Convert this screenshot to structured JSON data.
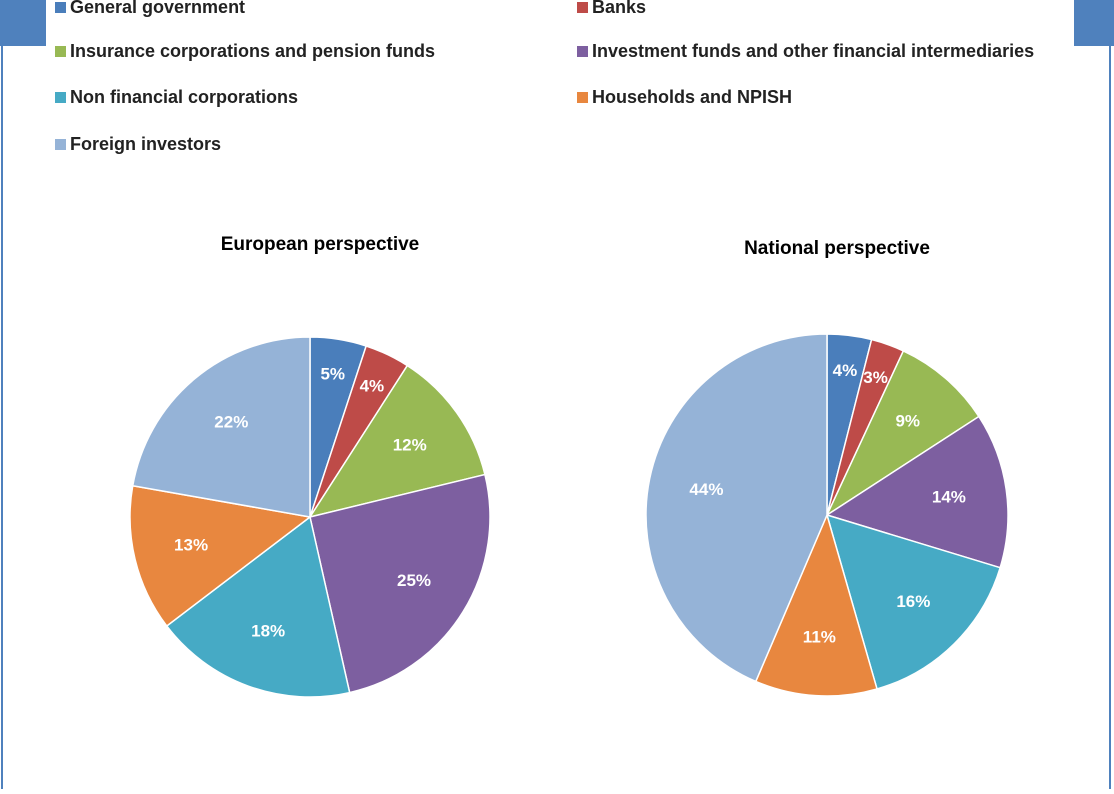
{
  "chart_data": [
    {
      "type": "pie",
      "title": "European perspective",
      "categories": [
        "General government",
        "Banks",
        "Insurance corporations and pension funds",
        "Investment funds and other financial intermediaries",
        "Non financial corporations",
        "Households and NPISH",
        "Foreign investors"
      ],
      "values": [
        5,
        4,
        12,
        25,
        18,
        13,
        22
      ],
      "value_labels": [
        "5%",
        "4%",
        "12%",
        "25%",
        "18%",
        "13%",
        "22%"
      ],
      "colors": [
        "#4a7ebb",
        "#be4b48",
        "#98b954",
        "#7d5fa0",
        "#46aac5",
        "#e8873f",
        "#95b3d7"
      ]
    },
    {
      "type": "pie",
      "title": "National perspective",
      "categories": [
        "General government",
        "Banks",
        "Insurance corporations and pension funds",
        "Investment funds and other financial intermediaries",
        "Non financial corporations",
        "Households and NPISH",
        "Foreign investors"
      ],
      "values": [
        4,
        3,
        9,
        14,
        16,
        11,
        44
      ],
      "value_labels": [
        "4%",
        "3%",
        "9%",
        "14%",
        "16%",
        "11%",
        "44%"
      ],
      "colors": [
        "#4a7ebb",
        "#be4b48",
        "#98b954",
        "#7d5fa0",
        "#46aac5",
        "#e8873f",
        "#95b3d7"
      ]
    }
  ]
}
